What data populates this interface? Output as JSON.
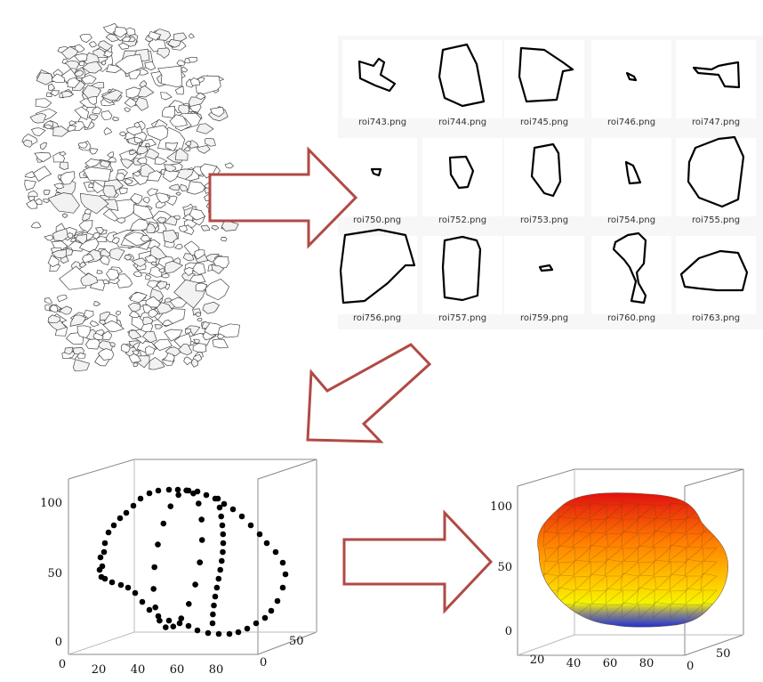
{
  "roi_panel": {
    "tiles": [
      {
        "label": "roi743.png"
      },
      {
        "label": "roi744.png"
      },
      {
        "label": "roi745.png"
      },
      {
        "label": "roi746.png"
      },
      {
        "label": "roi747.png"
      },
      {
        "label": "roi750.png"
      },
      {
        "label": "roi752.png"
      },
      {
        "label": "roi753.png"
      },
      {
        "label": "roi754.png"
      },
      {
        "label": "roi755.png"
      },
      {
        "label": "roi756.png"
      },
      {
        "label": "roi757.png"
      },
      {
        "label": "roi759.png"
      },
      {
        "label": "roi760.png"
      },
      {
        "label": "roi763.png"
      }
    ]
  },
  "point_cloud_plot": {
    "y_ticks": [
      "0",
      "50",
      "100"
    ],
    "x_ticks": [
      "0",
      "20",
      "40",
      "60",
      "80"
    ],
    "z_ticks": [
      "0",
      "50"
    ]
  },
  "surface_plot": {
    "y_ticks": [
      "0",
      "50",
      "100"
    ],
    "x_ticks": [
      "20",
      "40",
      "60",
      "80"
    ],
    "z_ticks": [
      "0",
      "50"
    ],
    "colormap": [
      "#e01010",
      "#ff7a00",
      "#ffd200",
      "#f5f500",
      "#2030d0"
    ]
  },
  "arrow_color": "#b04a45"
}
